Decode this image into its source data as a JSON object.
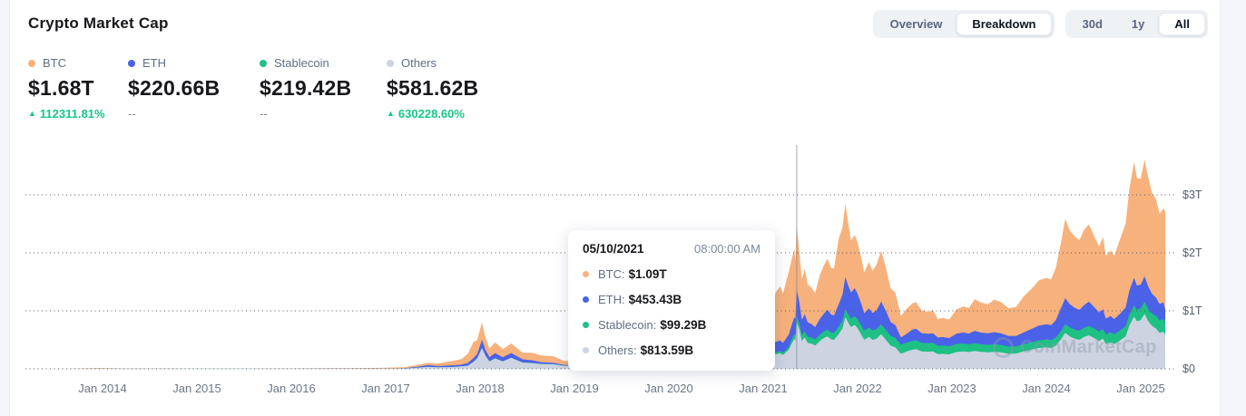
{
  "header": {
    "title": "Crypto Market Cap"
  },
  "toolbar": {
    "view_tabs": [
      {
        "label": "Overview",
        "active": false
      },
      {
        "label": "Breakdown",
        "active": true
      }
    ],
    "range_tabs": [
      {
        "label": "30d",
        "active": false
      },
      {
        "label": "1y",
        "active": false
      },
      {
        "label": "All",
        "active": true
      }
    ]
  },
  "stats": [
    {
      "name": "BTC",
      "color": "#F7B17C",
      "value": "$1.68T",
      "change": "112311.81%",
      "direction": "up"
    },
    {
      "name": "ETH",
      "color": "#4A62E8",
      "value": "$220.66B",
      "change": "--",
      "direction": "none"
    },
    {
      "name": "Stablecoin",
      "color": "#1EC083",
      "value": "$219.42B",
      "change": "--",
      "direction": "none"
    },
    {
      "name": "Others",
      "color": "#CDD3E0",
      "value": "$581.62B",
      "change": "630228.60%",
      "direction": "up"
    }
  ],
  "tooltip": {
    "date": "05/10/2021",
    "time": "08:00:00 AM",
    "rows": [
      {
        "label": "BTC:",
        "value": "$1.09T",
        "color": "#F7B17C"
      },
      {
        "label": "ETH:",
        "value": "$453.43B",
        "color": "#4A62E8"
      },
      {
        "label": "Stablecoin:",
        "value": "$99.29B",
        "color": "#1EC083"
      },
      {
        "label": "Others:",
        "value": "$813.59B",
        "color": "#CDD3E0"
      }
    ]
  },
  "watermark": "CoinMarketCap",
  "chart_data": {
    "type": "area",
    "stacked": true,
    "title": "Crypto Market Cap breakdown by asset class",
    "unit": "USD billions",
    "grid": "dotted horizontal lines",
    "legend_position": "top-left stats row",
    "x_unit": "decimal year",
    "x_range": [
      2013.18,
      2025.26
    ],
    "x_ticks": [
      "Jan 2014",
      "Jan 2015",
      "Jan 2016",
      "Jan 2017",
      "Jan 2018",
      "Jan 2019",
      "Jan 2020",
      "Jan 2021",
      "Jan 2022",
      "Jan 2023",
      "Jan 2024",
      "Jan 2025"
    ],
    "x_tick_years": [
      2014,
      2015,
      2016,
      2017,
      2018,
      2019,
      2020,
      2021,
      2022,
      2023,
      2024,
      2025
    ],
    "y_ticks": [
      {
        "label": "$0",
        "trillions": 0
      },
      {
        "label": "$1T",
        "trillions": 1
      },
      {
        "label": "$2T",
        "trillions": 2
      },
      {
        "label": "$3T",
        "trillions": 3
      }
    ],
    "y_axis_max_trillions": 3.86,
    "series_order_bottom_to_top": [
      "Others",
      "Stablecoin",
      "ETH",
      "BTC"
    ],
    "colors": {
      "BTC": "#F7B17C",
      "ETH": "#4A62E8",
      "Stablecoin": "#1EC083",
      "Others": "#CDD3E0"
    },
    "crosshair_t": 2021.355,
    "columns": [
      "t",
      "Others",
      "Stablecoin",
      "ETH",
      "BTC"
    ],
    "points": [
      [
        2013.18,
        0.2,
        0,
        0,
        1.2
      ],
      [
        2013.6,
        0.5,
        0,
        0,
        1.6
      ],
      [
        2013.95,
        2,
        0,
        0,
        12
      ],
      [
        2014.2,
        1.5,
        0,
        0,
        6
      ],
      [
        2014.6,
        1.2,
        0,
        0,
        6.5
      ],
      [
        2015.0,
        0.9,
        0,
        0,
        3.5
      ],
      [
        2015.5,
        0.9,
        0,
        0,
        3.3
      ],
      [
        2016.0,
        1.2,
        0,
        0.8,
        6.5
      ],
      [
        2016.4,
        2.2,
        0,
        1,
        7
      ],
      [
        2016.8,
        2.2,
        0,
        1,
        10.5
      ],
      [
        2017.0,
        2.8,
        0,
        0.7,
        15.5
      ],
      [
        2017.2,
        7,
        0.1,
        4,
        19
      ],
      [
        2017.35,
        22,
        0.1,
        17,
        33
      ],
      [
        2017.45,
        35,
        0.3,
        30,
        40
      ],
      [
        2017.55,
        27,
        0.3,
        21,
        45
      ],
      [
        2017.7,
        32,
        0.4,
        28,
        72
      ],
      [
        2017.8,
        42,
        0.5,
        29,
        98
      ],
      [
        2017.87,
        55,
        0.6,
        44,
        160
      ],
      [
        2017.93,
        120,
        0.9,
        65,
        280
      ],
      [
        2017.97,
        185,
        1.2,
        72,
        240
      ],
      [
        2018.02,
        360,
        1.7,
        138,
        300
      ],
      [
        2018.06,
        220,
        1.9,
        95,
        210
      ],
      [
        2018.1,
        130,
        2.1,
        70,
        150
      ],
      [
        2018.16,
        180,
        2.3,
        90,
        185
      ],
      [
        2018.24,
        130,
        2.5,
        68,
        140
      ],
      [
        2018.33,
        190,
        2.7,
        80,
        165
      ],
      [
        2018.45,
        110,
        2.7,
        52,
        115
      ],
      [
        2018.55,
        100,
        2.8,
        45,
        130
      ],
      [
        2018.65,
        85,
        2.8,
        28,
        115
      ],
      [
        2018.78,
        80,
        2.8,
        22,
        112
      ],
      [
        2018.88,
        55,
        2.6,
        12,
        72
      ],
      [
        2019.0,
        46,
        2.7,
        14,
        66
      ],
      [
        2019.1,
        44,
        2.7,
        13,
        63
      ],
      [
        2019.25,
        58,
        3.2,
        18,
        92
      ],
      [
        2019.4,
        72,
        4,
        28,
        155
      ],
      [
        2019.5,
        80,
        4.5,
        30,
        225
      ],
      [
        2019.6,
        62,
        4.6,
        22,
        185
      ],
      [
        2019.7,
        58,
        4.8,
        20,
        170
      ],
      [
        2019.8,
        52,
        4.9,
        16,
        150
      ],
      [
        2019.9,
        48,
        5,
        14,
        133
      ],
      [
        2020.0,
        49,
        5.2,
        15,
        131
      ],
      [
        2020.1,
        62,
        5.6,
        26,
        180
      ],
      [
        2020.2,
        39,
        6.5,
        16,
        110
      ],
      [
        2020.3,
        48,
        8.5,
        21,
        140
      ],
      [
        2020.42,
        55,
        10.5,
        24,
        170
      ],
      [
        2020.55,
        62,
        12.5,
        28,
        175
      ],
      [
        2020.62,
        78,
        14.5,
        47,
        215
      ],
      [
        2020.7,
        72,
        16,
        40,
        200
      ],
      [
        2020.78,
        72,
        17.5,
        42,
        245
      ],
      [
        2020.85,
        80,
        20,
        55,
        300
      ],
      [
        2020.92,
        88,
        23,
        67,
        420
      ],
      [
        2021.0,
        115,
        28,
        85,
        545
      ],
      [
        2021.04,
        170,
        31,
        140,
        680
      ],
      [
        2021.08,
        185,
        33,
        155,
        600
      ],
      [
        2021.13,
        250,
        36,
        180,
        850
      ],
      [
        2021.18,
        270,
        40,
        180,
        930
      ],
      [
        2021.21,
        240,
        42,
        165,
        850
      ],
      [
        2021.27,
        330,
        46,
        215,
        1080
      ],
      [
        2021.3,
        430,
        70,
        250,
        1130
      ],
      [
        2021.33,
        520,
        80,
        290,
        1180
      ],
      [
        2021.34,
        480,
        88,
        290,
        1000
      ],
      [
        2021.355,
        813.59,
        99.29,
        453.43,
        1090
      ],
      [
        2021.38,
        700,
        102,
        380,
        900
      ],
      [
        2021.41,
        480,
        104,
        260,
        700
      ],
      [
        2021.44,
        540,
        105,
        300,
        780
      ],
      [
        2021.47,
        450,
        106,
        250,
        660
      ],
      [
        2021.52,
        430,
        107,
        225,
        620
      ],
      [
        2021.55,
        400,
        108,
        210,
        590
      ],
      [
        2021.6,
        480,
        112,
        270,
        750
      ],
      [
        2021.64,
        530,
        115,
        300,
        830
      ],
      [
        2021.68,
        560,
        117,
        340,
        880
      ],
      [
        2021.72,
        510,
        119,
        310,
        800
      ],
      [
        2021.75,
        500,
        121,
        300,
        810
      ],
      [
        2021.8,
        600,
        126,
        390,
        1130
      ],
      [
        2021.84,
        700,
        131,
        450,
        1160
      ],
      [
        2021.87,
        890,
        137,
        555,
        1270
      ],
      [
        2021.9,
        800,
        140,
        500,
        1080
      ],
      [
        2021.93,
        720,
        145,
        450,
        900
      ],
      [
        2021.97,
        760,
        150,
        480,
        920
      ],
      [
        2022.0,
        700,
        154,
        440,
        880
      ],
      [
        2022.04,
        590,
        157,
        370,
        790
      ],
      [
        2022.07,
        500,
        160,
        300,
        700
      ],
      [
        2022.12,
        550,
        162,
        330,
        800
      ],
      [
        2022.16,
        500,
        163,
        300,
        730
      ],
      [
        2022.2,
        520,
        166,
        320,
        790
      ],
      [
        2022.25,
        600,
        169,
        390,
        880
      ],
      [
        2022.3,
        500,
        172,
        330,
        740
      ],
      [
        2022.35,
        400,
        170,
        240,
        580
      ],
      [
        2022.4,
        370,
        163,
        220,
        560
      ],
      [
        2022.46,
        260,
        157,
        125,
        370
      ],
      [
        2022.52,
        300,
        154,
        150,
        430
      ],
      [
        2022.58,
        330,
        153,
        195,
        450
      ],
      [
        2022.62,
        340,
        152,
        200,
        460
      ],
      [
        2022.68,
        300,
        150,
        165,
        390
      ],
      [
        2022.75,
        295,
        149,
        160,
        380
      ],
      [
        2022.8,
        300,
        148,
        165,
        395
      ],
      [
        2022.85,
        255,
        145,
        140,
        320
      ],
      [
        2022.9,
        260,
        143,
        145,
        330
      ],
      [
        2022.97,
        250,
        141,
        140,
        320
      ],
      [
        2023.05,
        290,
        139,
        180,
        420
      ],
      [
        2023.12,
        300,
        137,
        190,
        450
      ],
      [
        2023.18,
        290,
        134,
        185,
        440
      ],
      [
        2023.24,
        310,
        132,
        215,
        545
      ],
      [
        2023.3,
        295,
        130,
        205,
        520
      ],
      [
        2023.38,
        285,
        129,
        200,
        500
      ],
      [
        2023.45,
        295,
        128,
        210,
        560
      ],
      [
        2023.52,
        285,
        127,
        200,
        540
      ],
      [
        2023.6,
        260,
        125,
        180,
        480
      ],
      [
        2023.68,
        265,
        124,
        180,
        500
      ],
      [
        2023.76,
        300,
        125,
        205,
        620
      ],
      [
        2023.84,
        330,
        127,
        230,
        690
      ],
      [
        2023.92,
        360,
        130,
        255,
        780
      ],
      [
        2024.0,
        370,
        134,
        265,
        800
      ],
      [
        2024.05,
        360,
        136,
        255,
        790
      ],
      [
        2024.1,
        400,
        139,
        300,
        900
      ],
      [
        2024.16,
        520,
        143,
        400,
        1150
      ],
      [
        2024.2,
        620,
        148,
        450,
        1370
      ],
      [
        2024.25,
        560,
        152,
        400,
        1270
      ],
      [
        2024.3,
        520,
        155,
        380,
        1230
      ],
      [
        2024.35,
        500,
        157,
        360,
        1200
      ],
      [
        2024.4,
        550,
        159,
        390,
        1300
      ],
      [
        2024.45,
        580,
        161,
        420,
        1330
      ],
      [
        2024.52,
        520,
        163,
        360,
        1200
      ],
      [
        2024.56,
        480,
        164,
        330,
        1130
      ],
      [
        2024.6,
        520,
        166,
        340,
        1250
      ],
      [
        2024.63,
        430,
        167,
        270,
        1080
      ],
      [
        2024.68,
        460,
        169,
        280,
        1130
      ],
      [
        2024.72,
        430,
        170,
        260,
        1090
      ],
      [
        2024.78,
        490,
        172,
        290,
        1280
      ],
      [
        2024.84,
        560,
        176,
        320,
        1450
      ],
      [
        2024.88,
        750,
        183,
        420,
        1750
      ],
      [
        2024.93,
        900,
        195,
        475,
        2000
      ],
      [
        2024.96,
        820,
        197,
        420,
        1850
      ],
      [
        2025.0,
        840,
        202,
        410,
        1830
      ],
      [
        2025.04,
        950,
        206,
        440,
        2010
      ],
      [
        2025.08,
        820,
        208,
        390,
        1880
      ],
      [
        2025.12,
        740,
        212,
        340,
        1740
      ],
      [
        2025.16,
        700,
        215,
        320,
        1700
      ],
      [
        2025.2,
        620,
        217,
        280,
        1560
      ],
      [
        2025.24,
        640,
        218,
        290,
        1620
      ],
      [
        2025.26,
        581.62,
        219.42,
        220.66,
        1680
      ]
    ]
  }
}
